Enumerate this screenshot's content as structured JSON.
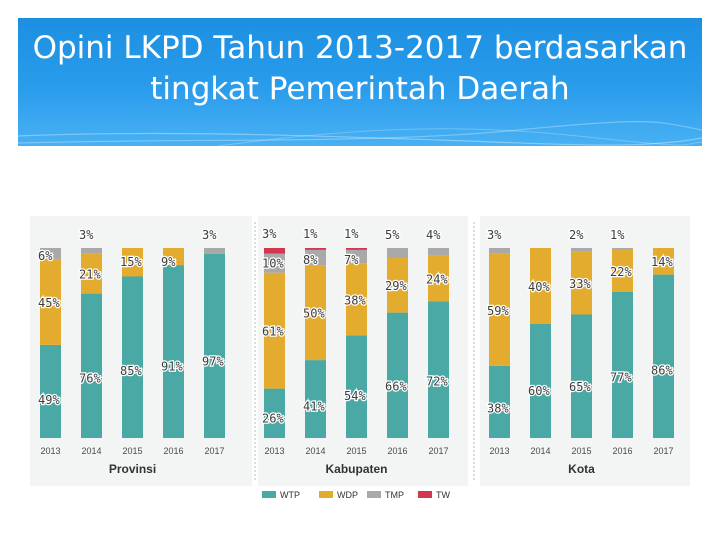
{
  "slide": {
    "title_line1": "Opini LKPD Tahun 2013-2017 berdasarkan",
    "title_line2": "tingkat Pemerintah Daerah"
  },
  "colors": {
    "WTP": "#4aa9a4",
    "WDP": "#e3ac2f",
    "TMP": "#a9a9a9",
    "TW": "#d2374f",
    "banner": "#2a9cec"
  },
  "chart_data": {
    "type": "bar",
    "stacked": true,
    "title": "Opini LKPD Tahun 2013-2017 berdasarkan tingkat Pemerintah Daerah",
    "unit": "%",
    "categories": [
      "2013",
      "2014",
      "2015",
      "2016",
      "2017"
    ],
    "series_names": [
      "WTP",
      "WDP",
      "TMP",
      "TW"
    ],
    "legend": [
      "WTP",
      "WDP",
      "TMP",
      "TW"
    ],
    "legend_position": "bottom",
    "ylim": [
      0,
      100
    ],
    "groups": [
      {
        "name": "Provinsi",
        "series": [
          {
            "name": "WTP",
            "values": [
              49,
              76,
              85,
              91,
              97
            ]
          },
          {
            "name": "WDP",
            "values": [
              45,
              21,
              15,
              9,
              0
            ]
          },
          {
            "name": "TMP",
            "values": [
              6,
              3,
              0,
              0,
              3
            ]
          },
          {
            "name": "TW",
            "values": [
              0,
              0,
              0,
              0,
              0
            ]
          }
        ]
      },
      {
        "name": "Kabupaten",
        "series": [
          {
            "name": "WTP",
            "values": [
              26,
              41,
              54,
              66,
              72
            ]
          },
          {
            "name": "WDP",
            "values": [
              61,
              50,
              38,
              29,
              24
            ]
          },
          {
            "name": "TMP",
            "values": [
              10,
              8,
              7,
              5,
              4
            ]
          },
          {
            "name": "TW",
            "values": [
              3,
              1,
              1,
              0,
              0
            ]
          }
        ]
      },
      {
        "name": "Kota",
        "series": [
          {
            "name": "WTP",
            "values": [
              38,
              60,
              65,
              77,
              86
            ]
          },
          {
            "name": "WDP",
            "values": [
              59,
              40,
              33,
              22,
              14
            ]
          },
          {
            "name": "TMP",
            "values": [
              3,
              0,
              2,
              1,
              0
            ]
          },
          {
            "name": "TW",
            "values": [
              0,
              0,
              0,
              0,
              0
            ]
          }
        ]
      }
    ]
  }
}
